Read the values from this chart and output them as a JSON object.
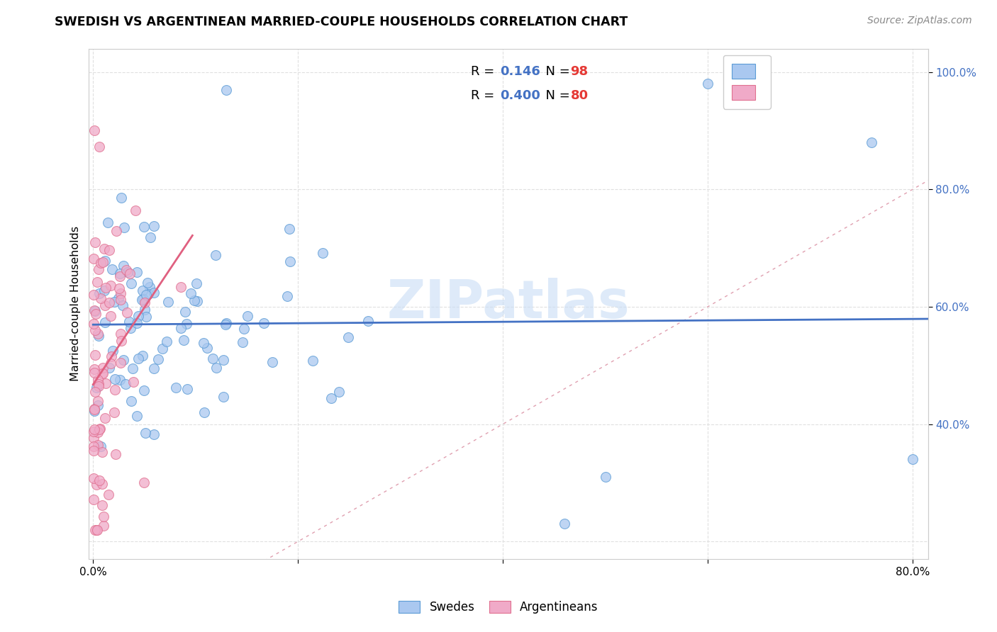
{
  "title": "SWEDISH VS ARGENTINEAN MARRIED-COUPLE HOUSEHOLDS CORRELATION CHART",
  "source": "Source: ZipAtlas.com",
  "ylabel": "Married-couple Households",
  "legend_r_swedish": "0.146",
  "legend_n_swedish": "98",
  "legend_r_argentinean": "0.400",
  "legend_n_argentinean": "80",
  "swedish_fill_color": "#aac8f0",
  "argentinean_fill_color": "#f0aac8",
  "swedish_edge_color": "#5b9bd5",
  "argentinean_edge_color": "#e07090",
  "swedish_line_color": "#4472c4",
  "argentinean_line_color": "#e06080",
  "diagonal_line_color": "#e0a0b0",
  "watermark_color": "#c8ddf5",
  "right_label_color": "#4472c4",
  "legend_text_color": "#4472c4",
  "background_color": "#ffffff",
  "grid_color": "#e0e0e0",
  "xlim": [
    -0.004,
    0.815
  ],
  "ylim": [
    0.17,
    1.04
  ],
  "ytick_vals": [
    0.2,
    0.4,
    0.6,
    0.8,
    1.0
  ],
  "ytick_labels": [
    "",
    "40.0%",
    "60.0%",
    "80.0%",
    "100.0%"
  ],
  "xtick_vals": [
    0.0,
    0.2,
    0.4,
    0.6,
    0.8
  ],
  "xtick_labels": [
    "0.0%",
    "",
    "",
    "",
    "80.0%"
  ],
  "marker_size": 100,
  "marker_alpha": 0.75,
  "marker_linewidth": 0.8,
  "trend_linewidth": 2.0,
  "grid_linewidth": 0.8,
  "grid_linestyle": "--"
}
